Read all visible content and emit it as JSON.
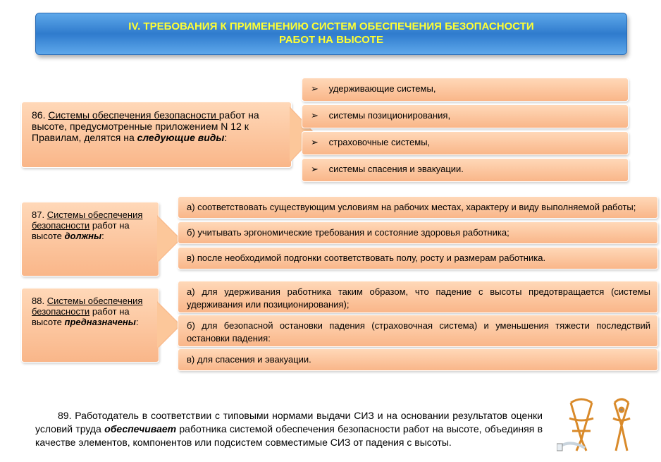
{
  "banner_text": "IV. ТРЕБОВАНИЯ К ПРИМЕНЕНИЮ СИСТЕМ ОБЕСПЕЧЕНИЯ БЕЗОПАСНОСТИ\nРАБОТ НА ВЫСОТЕ",
  "colors": {
    "banner_top": "#5ea8ea",
    "banner_mid": "#2f7bcd",
    "banner_text": "#ffff33",
    "box_top": "#ffd8b8",
    "box_bottom": "#f9b689",
    "box_border": "#ffffff",
    "page_bg": "#ffffff",
    "text": "#000000"
  },
  "bullets_86": [
    "удерживающие системы,",
    "системы позиционирования,",
    "страховочные системы,",
    "системы спасения и эвакуации."
  ],
  "arrow86": {
    "num": "86.",
    "underline": "Системы обеспечения безопасности ",
    "plain": "работ на высоте, предусмотренные приложением N 12 к Правилам, делятся на ",
    "bold_italic": "следующие виды",
    "tail": ":"
  },
  "arrow87": {
    "num": "87.",
    "underline": "Системы обеспечения безопасности",
    "plain": " работ на высоте ",
    "bold_italic": "должны",
    "tail": ":"
  },
  "list_87": [
    "а) соответствовать существующим условиям на рабочих местах, характеру и виду выполняемой работы;",
    "б) учитывать эргономические требования и состояние здоровья работника;",
    "в) после необходимой подгонки соответствовать полу, росту и размерам работника."
  ],
  "arrow88": {
    "num": "88.",
    "underline": "Системы обеспечения безопасности",
    "plain": " работ на высоте ",
    "bold_italic": "предназначены",
    "tail": ":"
  },
  "list_88": [
    "а) для удерживания работника таким образом, что падение с высоты предотвращается (системы удерживания или позиционирования);",
    "б) для безопасной остановки падения (страховочная система) и уменьшения тяжести последствий остановки падения:",
    "в) для спасения и эвакуации."
  ],
  "p89_text": "89. Работодатель в соответствии с типовыми нормами выдачи СИЗ и на основании результатов оценки условий труда обеспечивает работника системой обеспечения безопасности работ на высоте, объединяя в качестве элементов, компонентов или подсистем совместимые СИЗ от падения с высоты.",
  "p89_bold_word": "обеспечивает",
  "harness_icon": "safety-harness-icon",
  "bullet_glyph": "➢"
}
